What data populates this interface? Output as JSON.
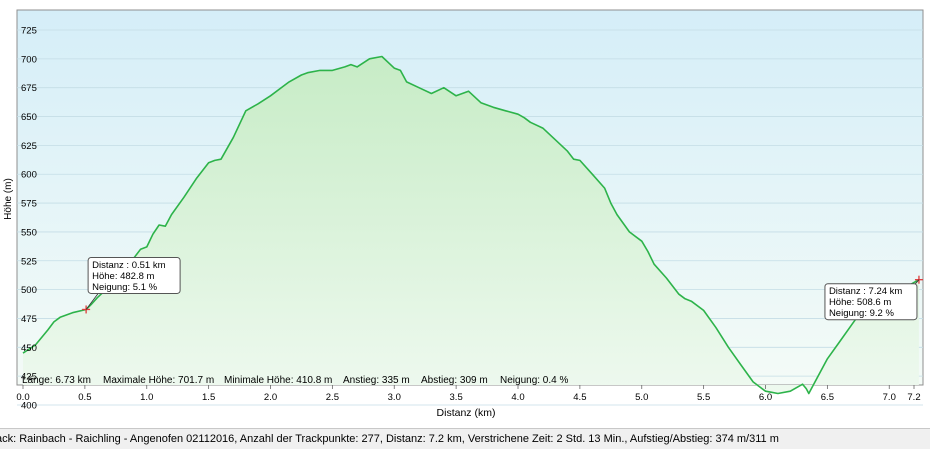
{
  "window": {
    "status_text": "ack: Rainbach - Raichling - Angenofen 02112016, Anzahl der Trackpunkte: 277, Distanz: 7.2 km, Verstrichene Zeit: 2 Std. 13 Min., Aufstieg/Abstieg: 374 m/311 m"
  },
  "chart_data": {
    "type": "area",
    "title": "",
    "xlabel": "Distanz  (km)",
    "ylabel": "Höhe (m)",
    "xlim": [
      0,
      7.2
    ],
    "ylim": [
      390,
      740
    ],
    "xticks": [
      0.0,
      0.5,
      1.0,
      1.5,
      2.0,
      2.5,
      3.0,
      3.5,
      4.0,
      4.5,
      5.0,
      5.5,
      6.0,
      6.5,
      7.0,
      7.2
    ],
    "xtick_labels": [
      "0.0",
      "0.5",
      "1.0",
      "1.5",
      "2.0",
      "2.5",
      "3.0",
      "3.5",
      "4.0",
      "4.5",
      "5.0",
      "5.5",
      "6.0",
      "6.5",
      "7.0",
      "7.2"
    ],
    "yticks": [
      400,
      425,
      450,
      475,
      500,
      525,
      550,
      575,
      600,
      625,
      650,
      675,
      700,
      725
    ],
    "grid": true,
    "line_color": "#2db34a",
    "series": [
      {
        "x": [
          0.0,
          0.1,
          0.2,
          0.25,
          0.3,
          0.4,
          0.51,
          0.55,
          0.6,
          0.65,
          0.7,
          0.75,
          0.8,
          0.9,
          0.95,
          1.0,
          1.05,
          1.1,
          1.15,
          1.2,
          1.3,
          1.4,
          1.5,
          1.55,
          1.6,
          1.7,
          1.8,
          1.9,
          2.0,
          2.1,
          2.15,
          2.25,
          2.3,
          2.4,
          2.5,
          2.6,
          2.65,
          2.7,
          2.8,
          2.9,
          3.0,
          3.05,
          3.1,
          3.2,
          3.3,
          3.4,
          3.5,
          3.6,
          3.7,
          3.8,
          3.9,
          4.0,
          4.05,
          4.1,
          4.2,
          4.3,
          4.4,
          4.45,
          4.5,
          4.6,
          4.7,
          4.75,
          4.8,
          4.9,
          5.0,
          5.05,
          5.1,
          5.2,
          5.3,
          5.35,
          5.4,
          5.5,
          5.6,
          5.7,
          5.8,
          5.9,
          6.0,
          6.05,
          6.1,
          6.2,
          6.3,
          6.33,
          6.35,
          6.4,
          6.5,
          6.6,
          6.7,
          6.8,
          6.9,
          7.0,
          7.1,
          7.24
        ],
        "y": [
          445,
          452,
          465,
          472,
          476,
          480,
          482.8,
          487,
          493,
          498,
          502,
          508,
          515,
          528,
          535,
          537,
          548,
          556,
          555,
          565,
          580,
          596,
          610,
          612,
          613,
          632,
          655,
          661,
          668,
          676,
          680,
          686,
          688,
          690,
          690,
          693,
          695,
          693,
          700,
          702,
          692,
          690,
          680,
          675,
          670,
          675,
          668,
          672,
          662,
          658,
          655,
          652,
          649,
          645,
          640,
          630,
          620,
          613,
          612,
          600,
          588,
          575,
          565,
          550,
          542,
          533,
          522,
          510,
          496,
          492,
          490,
          482,
          467,
          450,
          435,
          420,
          412,
          411,
          410,
          412,
          418,
          414,
          410,
          420,
          440,
          455,
          470,
          485,
          492,
          497,
          500,
          508.6
        ]
      }
    ],
    "markers": [
      {
        "name": "start-marker",
        "x": 0.51,
        "y": 482.8,
        "lines": [
          "Distanz  : 0.51 km",
          "Höhe: 482.8 m",
          "Neigung: 5.1 %"
        ]
      },
      {
        "name": "end-marker",
        "x": 7.24,
        "y": 508.6,
        "lines": [
          "Distanz  : 7.24 km",
          "Höhe: 508.6 m",
          "Neigung: 9.2 %"
        ]
      }
    ],
    "summary": {
      "laenge": "Länge: 6.73 km",
      "max_hoehe": "Maximale Höhe: 701.7 m",
      "min_hoehe": "Minimale Höhe: 410.8 m",
      "anstieg": "Anstieg: 335 m",
      "abstieg": "Abstieg: 309 m",
      "neigung": "Neigung: 0.4 %"
    }
  }
}
